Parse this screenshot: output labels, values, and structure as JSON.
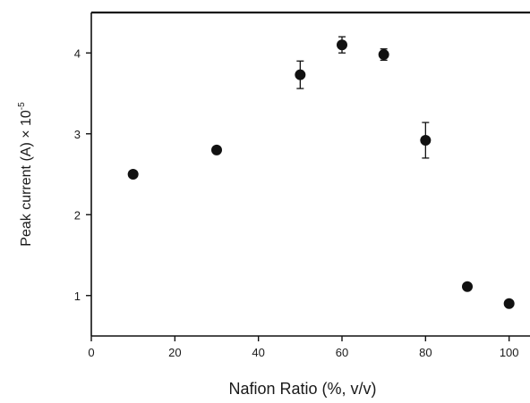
{
  "chart_data": {
    "type": "scatter",
    "title": "",
    "xlabel": "Nafion Ratio (%, v/v)",
    "ylabel_main": "Peak current (A) × 10",
    "ylabel_exponent": "-5",
    "xlim": [
      0,
      105
    ],
    "ylim": [
      0.5,
      4.5
    ],
    "xticks": [
      0,
      20,
      40,
      60,
      80,
      100
    ],
    "yticks": [
      1,
      2,
      3,
      4
    ],
    "grid": false,
    "legend": "none",
    "marker_color": "#111111",
    "points": [
      {
        "x": 10,
        "y": 2.5,
        "err": 0
      },
      {
        "x": 30,
        "y": 2.8,
        "err": 0
      },
      {
        "x": 50,
        "y": 3.73,
        "err": 0.17
      },
      {
        "x": 60,
        "y": 4.1,
        "err": 0.1
      },
      {
        "x": 70,
        "y": 3.98,
        "err": 0.07
      },
      {
        "x": 80,
        "y": 2.92,
        "err": 0.22
      },
      {
        "x": 90,
        "y": 1.11,
        "err": 0
      },
      {
        "x": 100,
        "y": 0.9,
        "err": 0
      }
    ]
  }
}
